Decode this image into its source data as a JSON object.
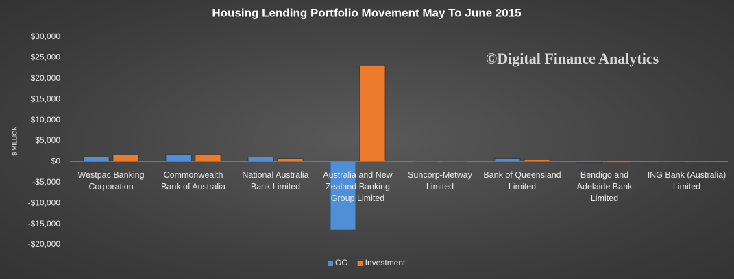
{
  "chart_data": {
    "type": "bar",
    "title": "Housing  Lending  Portfolio  Movement  May  To  June  2015",
    "annotation": "©Digital Finance Analytics",
    "y_label": "$ MILLION",
    "categories": [
      "Westpac Banking Corporation",
      "Commonwealth Bank of Australia",
      "National Australia Bank Limited",
      "Australia and New Zealand Banking Group Limited",
      "Suncorp-Metway Limited",
      "Bank of Queensland Limited",
      "Bendigo and Adelaide Bank Limited",
      "ING Bank (Australia) Limited"
    ],
    "series": [
      {
        "name": "OO",
        "color": "#4f8fd6",
        "values": [
          1150,
          1800,
          1150,
          -16400,
          100,
          800,
          -150,
          100
        ]
      },
      {
        "name": "Investment",
        "color": "#ee7b2c",
        "values": [
          1650,
          1800,
          800,
          23200,
          100,
          500,
          -200,
          150
        ]
      }
    ],
    "ylim": [
      -20000,
      30000
    ],
    "yticks": [
      {
        "value": -20000,
        "label": "-$20,000"
      },
      {
        "value": -15000,
        "label": "-$15,000"
      },
      {
        "value": -10000,
        "label": "-$10,000"
      },
      {
        "value": -5000,
        "label": "-$5,000"
      },
      {
        "value": 0,
        "label": "$0"
      },
      {
        "value": 5000,
        "label": "$5,000"
      },
      {
        "value": 10000,
        "label": "$10,000"
      },
      {
        "value": 15000,
        "label": "$15,000"
      },
      {
        "value": 20000,
        "label": "$20,000"
      },
      {
        "value": 25000,
        "label": "$25,000"
      },
      {
        "value": 30000,
        "label": "$30,000"
      }
    ],
    "grid": false,
    "legend": "bottom"
  }
}
